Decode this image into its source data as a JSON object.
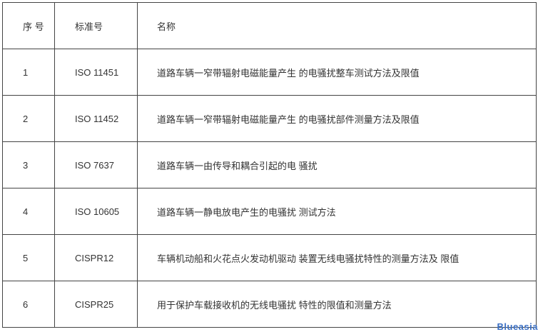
{
  "table": {
    "headers": [
      "序 号",
      "标准号",
      "名称"
    ],
    "rows": [
      [
        "1",
        "ISO 11451",
        "道路车辆一窄带辐射电磁能量产生 的电骚扰整车测试方法及限值"
      ],
      [
        "2",
        "ISO 11452",
        "道路车辆一窄带辐射电磁能量产生 的电骚扰部件测量方法及限值"
      ],
      [
        "3",
        "ISO 7637",
        "道路车辆一由传导和耦合引起的电 骚扰"
      ],
      [
        "4",
        "ISO 10605",
        "道路车辆一静电放电产生的电骚扰 测试方法"
      ],
      [
        "5",
        "CISPR12",
        "车辆机动船和火花点火发动机驱动 装置无线电骚扰特性的测量方法及 限值"
      ],
      [
        "6",
        "CISPR25",
        "用于保护车载接收机的无线电骚扰 特性的限值和测量方法"
      ]
    ]
  },
  "watermark": "Blueasia",
  "colors": {
    "border": "#444444",
    "text": "#333333",
    "watermark": "#3a6fc4"
  }
}
